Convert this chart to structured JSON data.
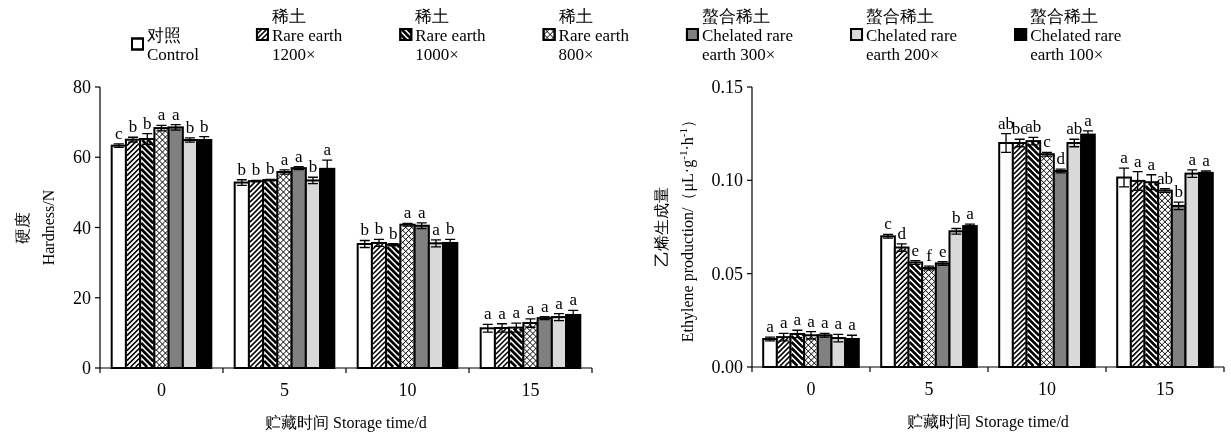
{
  "chart_data": [
    {
      "type": "bar",
      "ylabel": "硬度\nHardness/N",
      "xlabel": "贮藏时间 Storage time/d",
      "categories": [
        "0",
        "5",
        "10",
        "15"
      ],
      "ylim": [
        0,
        80
      ],
      "yticks": [
        0,
        20,
        40,
        60,
        80
      ],
      "legend": "top",
      "series": [
        {
          "name": "对照\nControl",
          "color": "#ffffff",
          "values": [
            63.3,
            52.8,
            35.3,
            11.3
          ],
          "errors": [
            0.5,
            0.8,
            1.0,
            1.1
          ],
          "value_labels": [
            "c",
            "b",
            "b",
            "a"
          ]
        },
        {
          "name": "稀土\nRare earth\n1200×",
          "color": "#ffffff",
          "values": [
            65.0,
            53.2,
            35.6,
            11.4
          ],
          "errors": [
            0.7,
            0.2,
            1.0,
            1.2
          ],
          "value_labels": [
            "b",
            "b",
            "b",
            "a"
          ]
        },
        {
          "name": "稀土\nRare earth\n1000×",
          "color": "#ffffff",
          "values": [
            65.2,
            53.5,
            35.1,
            11.5
          ],
          "errors": [
            1.5,
            0.2,
            0.3,
            1.3
          ],
          "value_labels": [
            "b",
            "b",
            "b",
            "a"
          ]
        },
        {
          "name": "稀土\nRare earth\n800×",
          "color": "#ffffff",
          "values": [
            68.3,
            55.8,
            40.8,
            12.8
          ],
          "errors": [
            0.8,
            0.6,
            0.4,
            1.2
          ],
          "value_labels": [
            "a",
            "a",
            "a",
            "a"
          ]
        },
        {
          "name": "螯合稀土\nChelated rare\nearth 300×",
          "color": "#808080",
          "values": [
            68.5,
            56.9,
            40.5,
            14.2
          ],
          "errors": [
            0.8,
            0.4,
            0.8,
            0.4
          ],
          "value_labels": [
            "a",
            "a",
            "a",
            "a"
          ]
        },
        {
          "name": "螯合稀土\nChelated rare\nearth 200×",
          "color": "#d9d9d9",
          "values": [
            64.9,
            53.4,
            35.5,
            14.5
          ],
          "errors": [
            0.6,
            0.9,
            1.0,
            1.0
          ],
          "value_labels": [
            "b",
            "b",
            "a",
            "a"
          ]
        },
        {
          "name": "螯合稀土\nChelated rare\nearth 100×",
          "color": "#000000",
          "values": [
            64.9,
            56.7,
            35.6,
            15.1
          ],
          "errors": [
            1.0,
            2.5,
            1.0,
            1.3
          ],
          "value_labels": [
            "b",
            "a",
            "b",
            "a"
          ]
        }
      ]
    },
    {
      "type": "bar",
      "ylabel": "乙烯生成量\nEthylene production/（μL·g$^{-1}$·h$^{-1}$）",
      "xlabel": "贮藏时间 Storage time/d",
      "categories": [
        "0",
        "5",
        "10",
        "15"
      ],
      "ylim": [
        0,
        0.15
      ],
      "yticks": [
        {
          "value": 0,
          "label": "0.00"
        },
        {
          "value": 0.05,
          "label": "0.05"
        },
        {
          "value": 0.1,
          "label": "0.10"
        },
        {
          "value": 0.15,
          "label": "0.15"
        }
      ],
      "series": [
        {
          "color": "#ffffff",
          "values": [
            0.015,
            0.07,
            0.12,
            0.1015
          ],
          "errors": [
            0.001,
            0.001,
            0.005,
            0.005
          ],
          "value_labels": [
            "a",
            "c",
            "ab",
            "a"
          ]
        },
        {
          "color": "#ffffff",
          "values": [
            0.016,
            0.064,
            0.12,
            0.0997
          ],
          "errors": [
            0.002,
            0.002,
            0.002,
            0.005
          ],
          "value_labels": [
            "a",
            "d",
            "bc",
            "a"
          ]
        },
        {
          "color": "#ffffff",
          "values": [
            0.0177,
            0.056,
            0.121,
            0.099
          ],
          "errors": [
            0.002,
            0.001,
            0.002,
            0.004
          ],
          "value_labels": [
            "a",
            "e",
            "ab",
            "a"
          ]
        },
        {
          "color": "#ffffff",
          "values": [
            0.017,
            0.053,
            0.114,
            0.0945
          ],
          "errors": [
            0.002,
            0.001,
            0.001,
            0.001
          ],
          "value_labels": [
            "a",
            "f",
            "c",
            "ab"
          ]
        },
        {
          "color": "#808080",
          "values": [
            0.017,
            0.0555,
            0.105,
            0.0863
          ],
          "errors": [
            0.001,
            0.001,
            0.001,
            0.002
          ],
          "value_labels": [
            "a",
            "e",
            "d",
            "b"
          ]
        },
        {
          "color": "#d9d9d9",
          "values": [
            0.0155,
            0.0727,
            0.12,
            0.1036
          ],
          "errors": [
            0.002,
            0.0015,
            0.002,
            0.002
          ],
          "value_labels": [
            "a",
            "b",
            "ab",
            "a"
          ]
        },
        {
          "color": "#000000",
          "values": [
            0.015,
            0.0755,
            0.1245,
            0.104
          ],
          "errors": [
            0.002,
            0.001,
            0.002,
            0.001
          ],
          "value_labels": [
            "a",
            "a",
            "a",
            "a"
          ]
        }
      ]
    }
  ]
}
